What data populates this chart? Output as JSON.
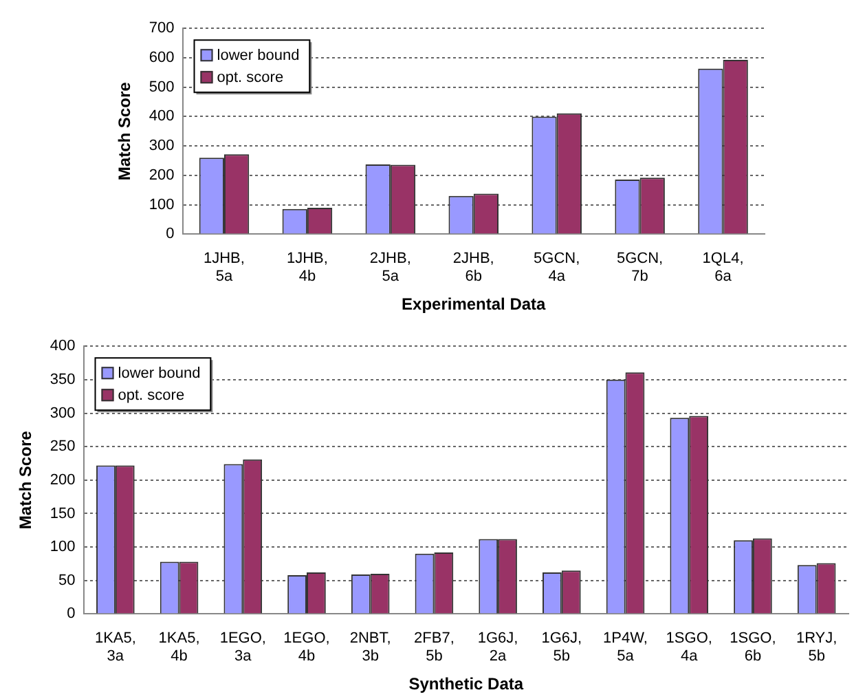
{
  "chart_data": [
    {
      "type": "bar",
      "xlabel": "Experimental Data",
      "ylabel": "Match Score",
      "categories": [
        "1JHB, 5a",
        "1JHB, 4b",
        "2JHB, 5a",
        "2JHB, 6b",
        "5GCN, 4a",
        "5GCN, 7b",
        "1QL4, 6a"
      ],
      "series": [
        {
          "name": "lower bound",
          "color": "#9999ff",
          "values": [
            260,
            86,
            237,
            130,
            400,
            186,
            563
          ]
        },
        {
          "name": "opt. score",
          "color": "#993366",
          "values": [
            272,
            90,
            236,
            138,
            411,
            192,
            593
          ]
        }
      ],
      "ylim": [
        0,
        700
      ],
      "yticks": [
        0,
        100,
        200,
        300,
        400,
        500,
        600,
        700
      ],
      "grid": "y",
      "legend": "top left"
    },
    {
      "type": "bar",
      "xlabel": "Synthetic Data",
      "ylabel": "Match Score",
      "categories": [
        "1KA5, 3a",
        "1KA5, 4b",
        "1EGO, 3a",
        "1EGO, 4b",
        "2NBT, 3b",
        "2FB7, 5b",
        "1G6J, 2a",
        "1G6J, 5b",
        "1P4W, 5a",
        "1SGO, 4a",
        "1SGO, 6b",
        "1RYJ, 5b"
      ],
      "series": [
        {
          "name": "lower bound",
          "color": "#9999ff",
          "values": [
            222,
            78,
            224,
            58,
            59,
            90,
            112,
            62,
            350,
            293,
            110,
            73
          ]
        },
        {
          "name": "opt. score",
          "color": "#993366",
          "values": [
            222,
            78,
            231,
            62,
            60,
            92,
            112,
            65,
            361,
            296,
            113,
            76
          ]
        }
      ],
      "ylim": [
        0,
        400
      ],
      "yticks": [
        0,
        50,
        100,
        150,
        200,
        250,
        300,
        350,
        400
      ],
      "grid": "y",
      "legend": "top left"
    }
  ]
}
